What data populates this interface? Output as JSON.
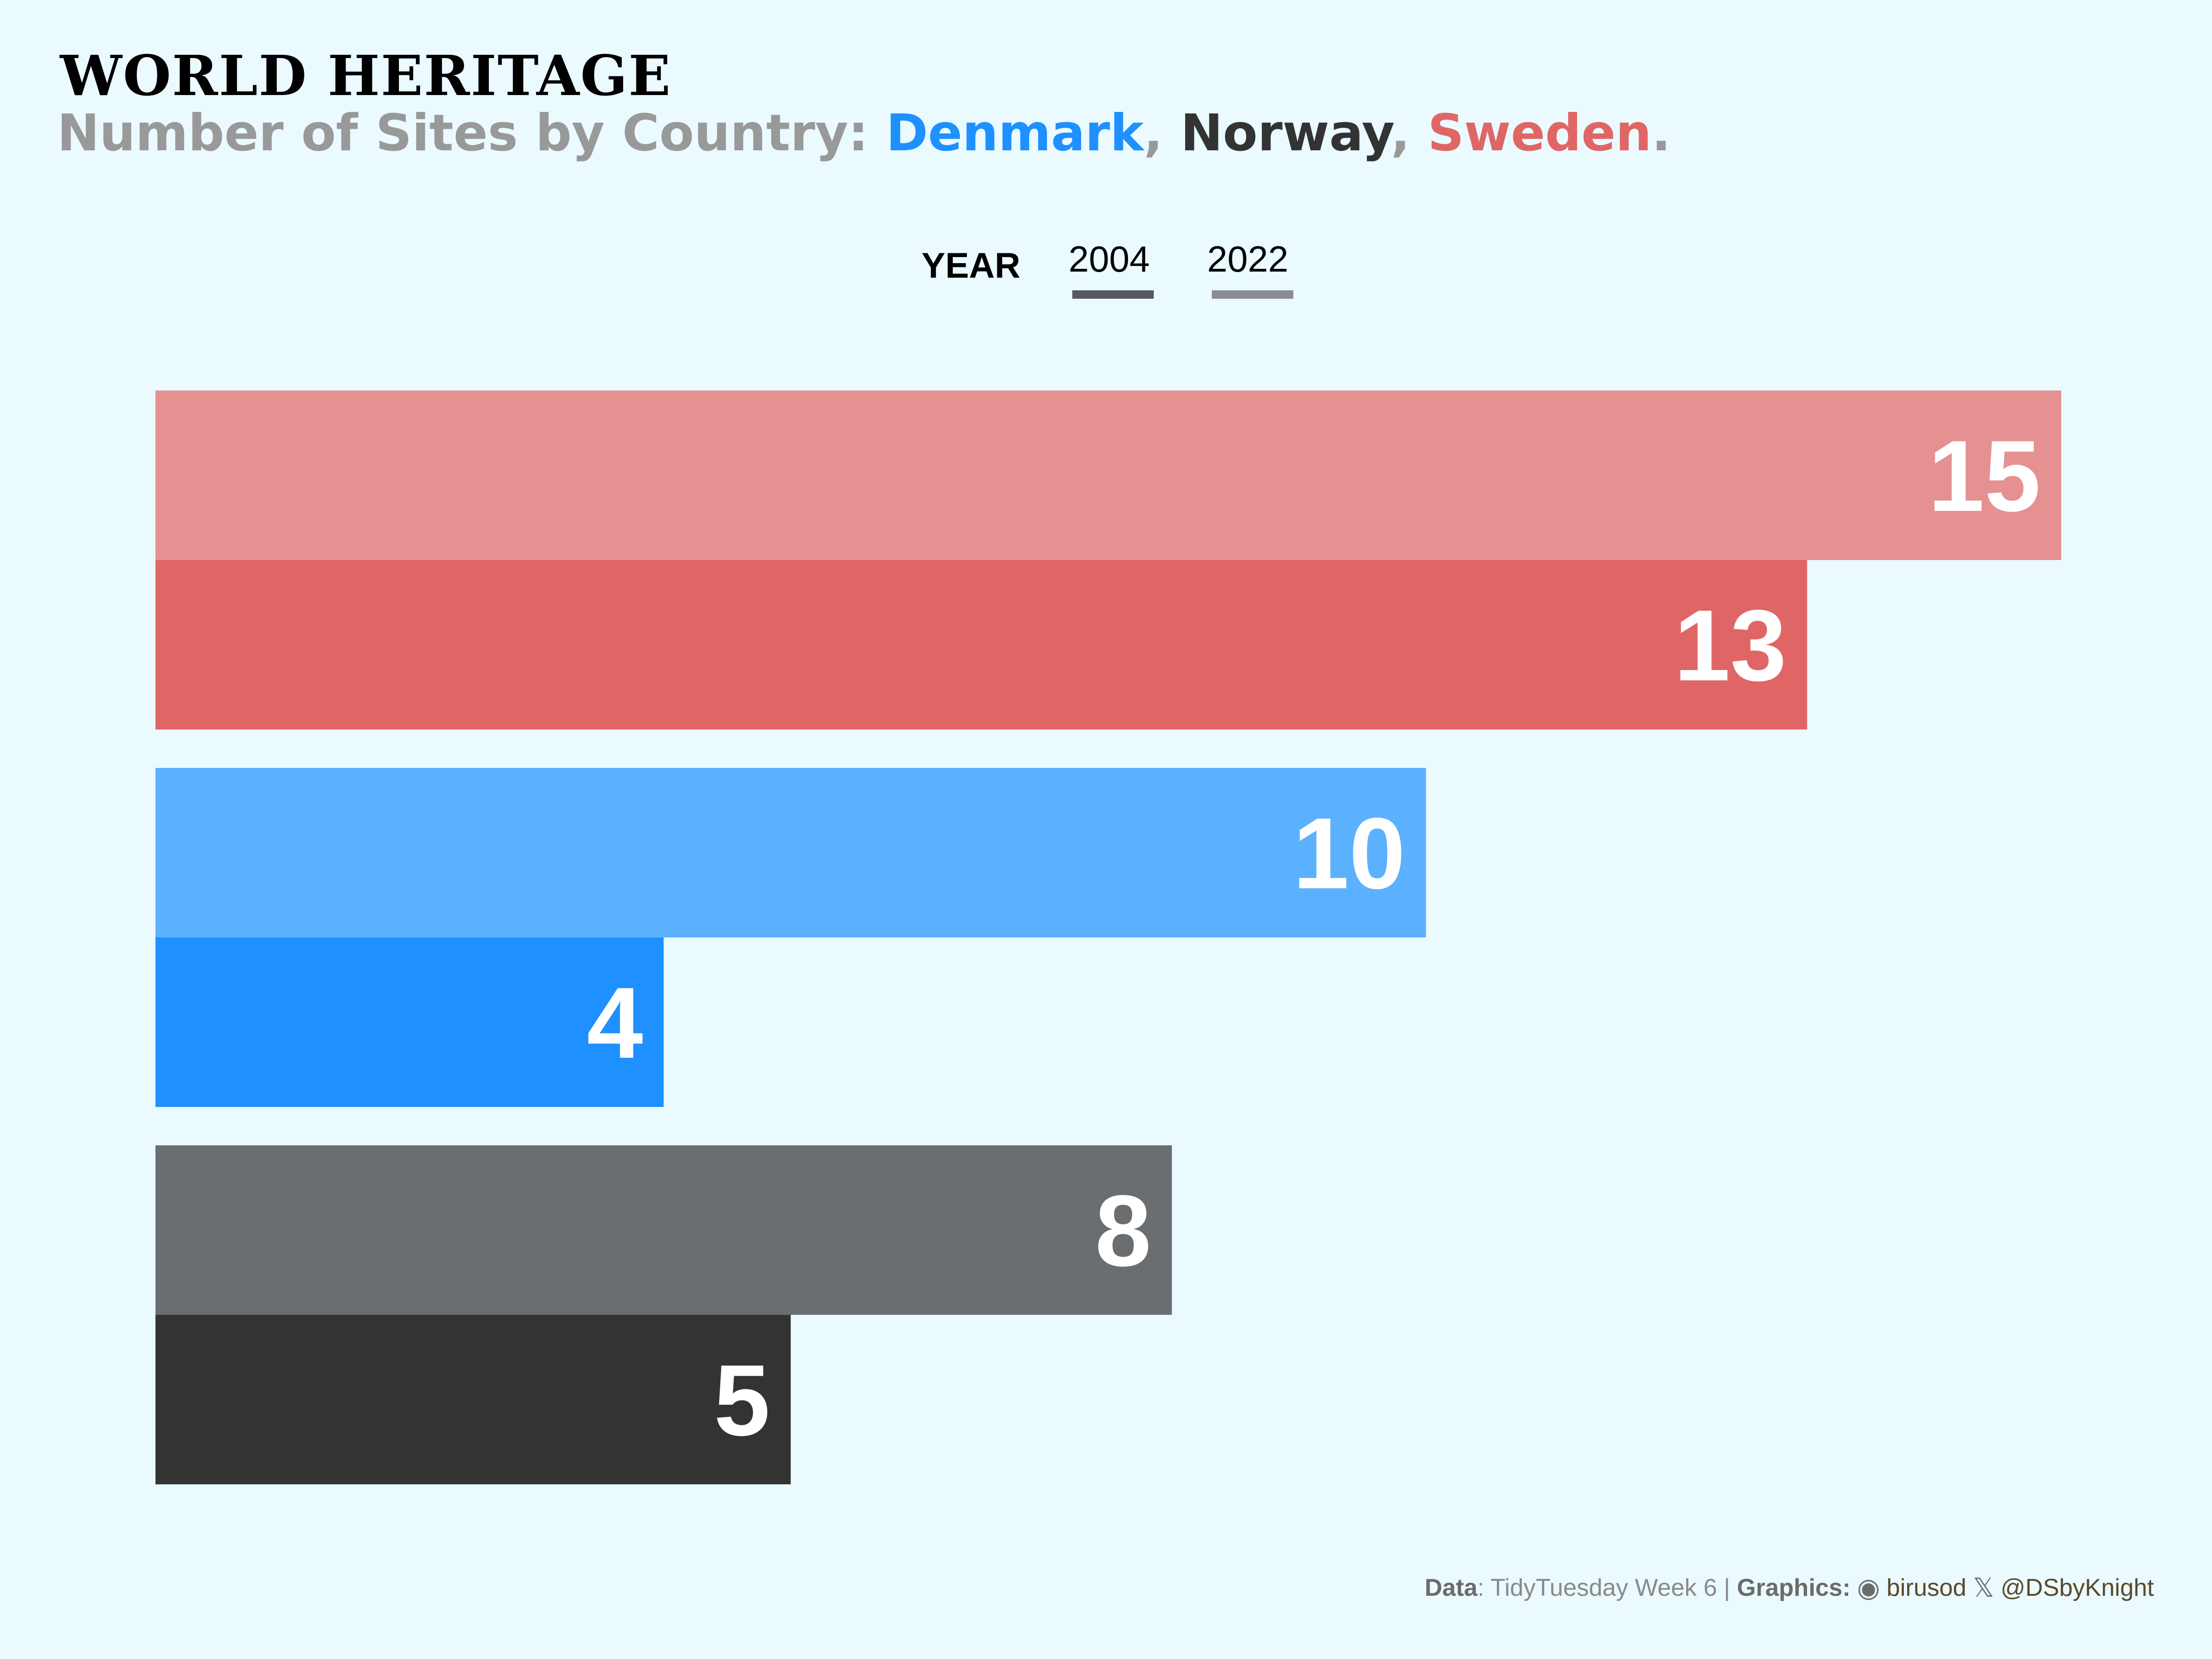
{
  "title": "WORLD HERITAGE",
  "subtitle": {
    "prefix": "Number of Sites by Country: ",
    "countries": [
      {
        "name": "Denmark",
        "color": "#1e90ff"
      },
      {
        "name": "Norway",
        "color": "#333333"
      },
      {
        "name": "Sweden",
        "color": "#e06666"
      }
    ],
    "sep1": ", ",
    "sep2": ", ",
    "suffix": "."
  },
  "legend": {
    "title": "YEAR",
    "items": [
      {
        "label": "2004",
        "color": "#555a5e"
      },
      {
        "label": "2022",
        "color": "#8a8c8f"
      }
    ]
  },
  "chart_data": {
    "type": "bar",
    "orientation": "horizontal",
    "categories": [
      "Sweden",
      "Denmark",
      "Norway"
    ],
    "series": [
      {
        "name": "2022",
        "values": [
          15,
          10,
          8
        ]
      },
      {
        "name": "2004",
        "values": [
          13,
          4,
          5
        ]
      }
    ],
    "xlim": [
      0,
      15
    ],
    "grid": false,
    "legend_position": "top",
    "colors": {
      "Sweden": {
        "2022": "#e59192",
        "2004": "#e06666"
      },
      "Denmark": {
        "2022": "#5cb1ff",
        "2004": "#1e90ff"
      },
      "Norway": {
        "2022": "#6b6e70",
        "2004": "#333333"
      }
    },
    "label_color": "#ffffff"
  },
  "caption": {
    "data_label": "Data",
    "data_value": ": TidyTuesday Week 6 | ",
    "graphics_label": "Graphics:",
    "github_icon": "github-icon",
    "github_handle": "birusod",
    "x_icon": "x-icon",
    "x_handle": "@DSbyKnight"
  }
}
